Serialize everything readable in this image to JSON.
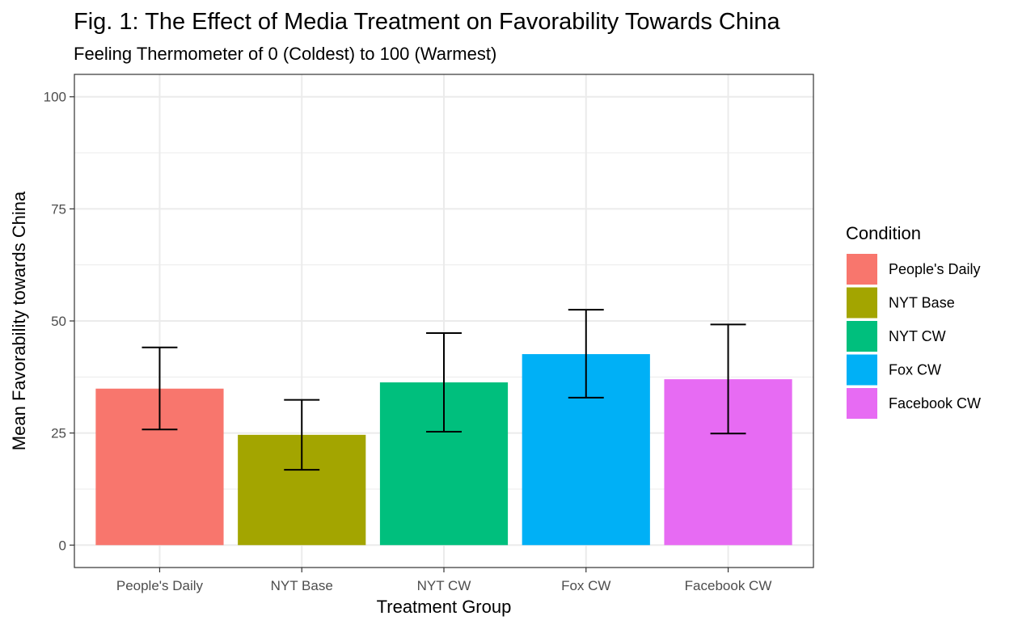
{
  "chart_data": {
    "type": "bar",
    "title": "Fig. 1: The Effect of Media Treatment on Favorability Towards China",
    "subtitle": "Feeling Thermometer of 0 (Coldest) to 100 (Warmest)",
    "xlabel": "Treatment Group",
    "ylabel": "Mean Favorability towards China",
    "categories": [
      "People's Daily",
      "NYT Base",
      "NYT CW",
      "Fox CW",
      "Facebook CW"
    ],
    "values": [
      34.9,
      24.6,
      36.3,
      42.6,
      37.0
    ],
    "error_bars": [
      {
        "low": 25.8,
        "high": 44.1
      },
      {
        "low": 16.8,
        "high": 32.4
      },
      {
        "low": 25.3,
        "high": 47.3
      },
      {
        "low": 32.9,
        "high": 52.5
      },
      {
        "low": 24.9,
        "high": 49.2
      }
    ],
    "colors": [
      "#F8766D",
      "#A3A500",
      "#00BF7D",
      "#00B0F6",
      "#E76BF3"
    ],
    "ylim": [
      -5,
      105
    ],
    "yticks": [
      0,
      25,
      50,
      75,
      100
    ],
    "ytick_labels": [
      "0",
      "25",
      "50",
      "75",
      "100"
    ],
    "grid": true,
    "legend": {
      "title": "Condition",
      "position": "right",
      "entries": [
        "People's Daily",
        "NYT Base",
        "NYT CW",
        "Fox CW",
        "Facebook CW"
      ]
    }
  }
}
